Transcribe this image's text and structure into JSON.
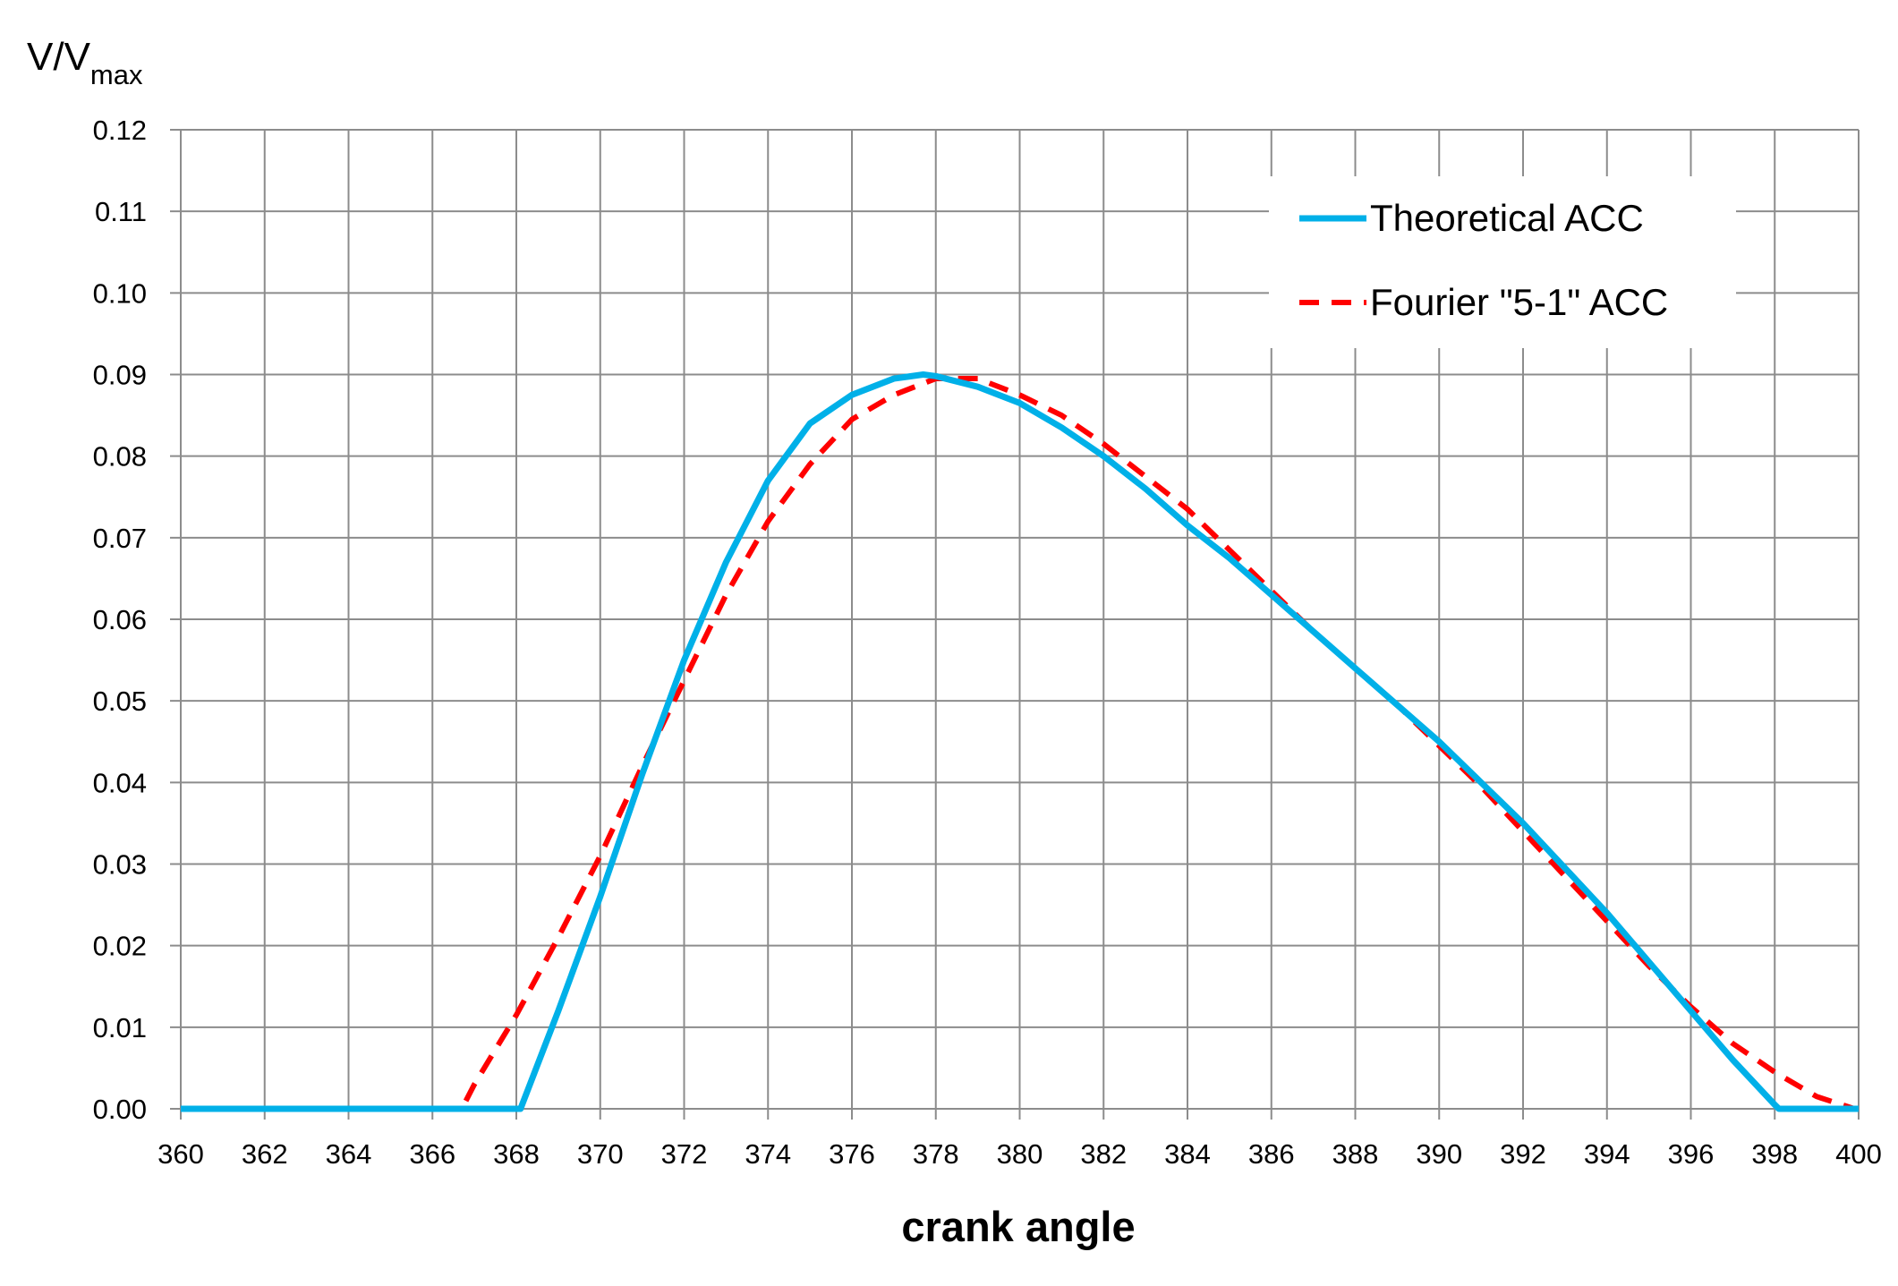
{
  "chart_data": {
    "type": "line",
    "title": "",
    "xlabel": "crank angle",
    "ylabel": {
      "main": "V/V",
      "subscript": "max"
    },
    "xlim": [
      360,
      400
    ],
    "ylim": [
      0,
      0.12
    ],
    "grid": true,
    "legend_position": "top-right",
    "x_ticks": [
      360,
      362,
      364,
      366,
      368,
      370,
      372,
      374,
      376,
      378,
      380,
      382,
      384,
      386,
      388,
      390,
      392,
      394,
      396,
      398,
      400
    ],
    "x_tick_labels": [
      "360",
      "362",
      "364",
      "366",
      "368",
      "370",
      "372",
      "374",
      "376",
      "378",
      "380",
      "382",
      "384",
      "386",
      "388",
      "390",
      "392",
      "394",
      "396",
      "398",
      "400"
    ],
    "y_ticks": [
      0,
      0.01,
      0.02,
      0.03,
      0.04,
      0.05,
      0.06,
      0.07,
      0.08,
      0.09,
      0.1,
      0.11,
      0.12
    ],
    "y_tick_labels": [
      "0.00",
      "0.01",
      "0.02",
      "0.03",
      "0.04",
      "0.05",
      "0.06",
      "0.07",
      "0.08",
      "0.09",
      "0.10",
      "0.11",
      "0.12"
    ],
    "series": [
      {
        "name": "Theoretical ACC",
        "color": "#00b0e8",
        "style": "solid",
        "x": [
          360,
          362,
          364,
          366,
          368,
          368.1,
          369,
          370,
          371,
          372,
          373,
          374,
          375,
          376,
          377,
          377.7,
          378,
          379,
          380,
          381,
          382,
          383,
          384,
          385,
          386,
          387,
          388,
          389,
          390,
          391,
          392,
          393,
          394,
          395,
          396,
          397,
          398,
          398.1,
          399,
          400
        ],
        "y": [
          0,
          0,
          0,
          0,
          0,
          0,
          0.012,
          0.026,
          0.041,
          0.055,
          0.067,
          0.077,
          0.084,
          0.0875,
          0.0895,
          0.09,
          0.0898,
          0.0885,
          0.0865,
          0.0835,
          0.08,
          0.076,
          0.0715,
          0.0675,
          0.063,
          0.0585,
          0.054,
          0.0495,
          0.045,
          0.04,
          0.035,
          0.0295,
          0.024,
          0.018,
          0.012,
          0.006,
          0.0005,
          0,
          0,
          0
        ]
      },
      {
        "name": "Fourier \"5-1\" ACC",
        "color": "#ff0000",
        "style": "dashed",
        "x": [
          360,
          366.7,
          367,
          368,
          369,
          370,
          371,
          372,
          373,
          374,
          375,
          376,
          377,
          378,
          379,
          380,
          381,
          382,
          383,
          384,
          385,
          386,
          387,
          388,
          389,
          390,
          391,
          392,
          393,
          394,
          395,
          396,
          397,
          398,
          399,
          399.9
        ],
        "y": [
          0,
          0,
          0.003,
          0.0115,
          0.021,
          0.031,
          0.042,
          0.0525,
          0.063,
          0.072,
          0.079,
          0.0845,
          0.0875,
          0.0895,
          0.0895,
          0.0875,
          0.085,
          0.0815,
          0.0775,
          0.0735,
          0.0685,
          0.0635,
          0.0585,
          0.054,
          0.0495,
          0.0445,
          0.0395,
          0.034,
          0.0285,
          0.023,
          0.0175,
          0.0125,
          0.008,
          0.0045,
          0.0015,
          0
        ]
      }
    ]
  }
}
